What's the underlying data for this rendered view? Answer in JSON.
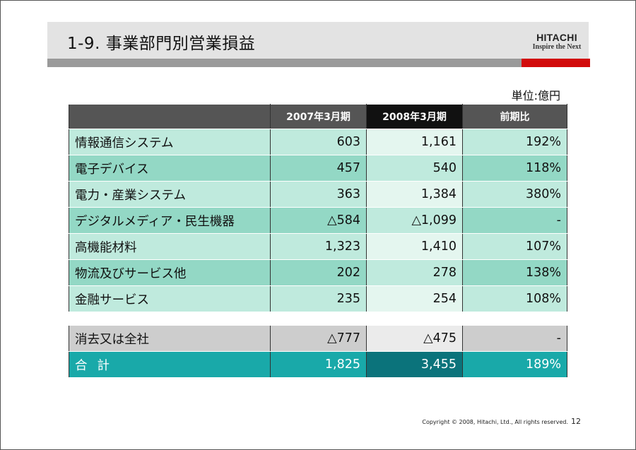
{
  "title": "1-9. 事業部門別営業損益",
  "logo": {
    "main": "HITACHI",
    "sub": "Inspire the Next"
  },
  "unit": "単位:億円",
  "columns": [
    "",
    "2007年3月期",
    "2008年3月期",
    "前期比"
  ],
  "rows": [
    {
      "label": "情報通信システム",
      "fy2007": "603",
      "fy2008": "1,161",
      "ratio": "192%"
    },
    {
      "label": "電子デバイス",
      "fy2007": "457",
      "fy2008": "540",
      "ratio": "118%"
    },
    {
      "label": "電力・産業システム",
      "fy2007": "363",
      "fy2008": "1,384",
      "ratio": "380%"
    },
    {
      "label": "デジタルメディア・民生機器",
      "fy2007": "△584",
      "fy2008": "△1,099",
      "ratio": "-"
    },
    {
      "label": "高機能材料",
      "fy2007": "1,323",
      "fy2008": "1,410",
      "ratio": "107%"
    },
    {
      "label": "物流及びサービス他",
      "fy2007": "202",
      "fy2008": "278",
      "ratio": "138%"
    },
    {
      "label": "金融サービス",
      "fy2007": "235",
      "fy2008": "254",
      "ratio": "108%"
    }
  ],
  "elimination": {
    "label": "消去又は全社",
    "fy2007": "△777",
    "fy2008": "△475",
    "ratio": "-"
  },
  "total": {
    "label": "合計",
    "fy2007": "1,825",
    "fy2008": "3,455",
    "ratio": "189%"
  },
  "footer": {
    "copyright": "Copyright © 2008, Hitachi, Ltd., All rights reserved.",
    "page": "12"
  }
}
